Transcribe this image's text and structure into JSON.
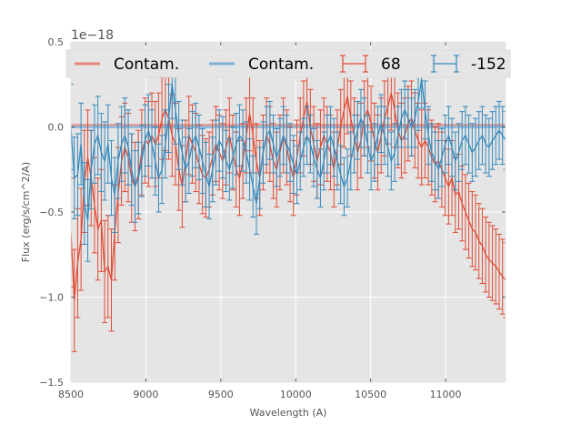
{
  "chart_data": {
    "type": "line",
    "title": "",
    "xlabel": "Wavelength (A)",
    "ylabel": "Flux (erg/s/cm^2/A)",
    "y_offset_label": "1e−18",
    "xlim": [
      8500,
      11400
    ],
    "ylim": [
      -1.5,
      0.5
    ],
    "x_ticks": [
      8500,
      9000,
      9500,
      10000,
      10500,
      11000
    ],
    "x_tick_labels": [
      "8500",
      "9000",
      "9500",
      "10000",
      "10500",
      "11000"
    ],
    "y_ticks": [
      0.5,
      0.0,
      -0.5,
      -1.0,
      -1.5
    ],
    "y_tick_labels": [
      "0.5",
      "0.0",
      "−0.5",
      "−1.0",
      "−1.5"
    ],
    "grid": true,
    "background": "#e5e5e5",
    "legend": {
      "placement": "top",
      "ncol": 4,
      "entries": [
        {
          "label": "Contam.",
          "kind": "line",
          "color": "#e8877a"
        },
        {
          "label": "Contam.",
          "kind": "line",
          "color": "#7fb0d6"
        },
        {
          "label": "68",
          "kind": "errorbar",
          "color": "#e24a33"
        },
        {
          "label": "-152",
          "kind": "errorbar",
          "color": "#348abd"
        }
      ]
    },
    "x_start": 8500,
    "x_step": 22.5,
    "series": [
      {
        "name": "68",
        "kind": "errorbar",
        "color": "#e24a33",
        "values": [
          -0.62,
          -1.02,
          -0.8,
          -0.66,
          -0.32,
          -0.18,
          -0.3,
          -0.46,
          -0.6,
          -0.55,
          -0.85,
          -0.82,
          -0.9,
          -0.62,
          -0.4,
          -0.2,
          -0.12,
          -0.18,
          -0.3,
          -0.35,
          -0.28,
          -0.15,
          -0.08,
          -0.1,
          -0.05,
          -0.1,
          -0.05,
          0.05,
          0.1,
          0.05,
          -0.05,
          -0.1,
          -0.25,
          -0.35,
          -0.2,
          -0.05,
          -0.1,
          -0.15,
          -0.22,
          -0.28,
          -0.3,
          -0.25,
          -0.18,
          -0.1,
          -0.15,
          -0.2,
          -0.12,
          -0.05,
          -0.15,
          -0.25,
          -0.3,
          -0.2,
          -0.05,
          0.08,
          -0.05,
          -0.2,
          -0.3,
          -0.15,
          -0.05,
          -0.1,
          -0.2,
          -0.25,
          -0.15,
          -0.05,
          -0.12,
          -0.22,
          -0.3,
          -0.18,
          -0.05,
          0.05,
          0.15,
          0.0,
          -0.1,
          -0.2,
          -0.12,
          -0.05,
          -0.1,
          -0.15,
          -0.25,
          -0.12,
          0.0,
          0.1,
          0.18,
          0.05,
          -0.05,
          -0.15,
          -0.08,
          0.05,
          0.1,
          0.02,
          -0.08,
          -0.15,
          -0.05,
          0.05,
          0.12,
          0.2,
          0.1,
          -0.02,
          -0.08,
          -0.05,
          0.02,
          0.05,
          -0.02,
          -0.08,
          -0.12,
          -0.08,
          -0.12,
          -0.18,
          -0.22,
          -0.2,
          -0.25,
          -0.3,
          -0.35,
          -0.3,
          -0.4,
          -0.38,
          -0.45,
          -0.5,
          -0.55,
          -0.6,
          -0.62,
          -0.67,
          -0.7,
          -0.75,
          -0.78,
          -0.8,
          -0.82,
          -0.85,
          -0.88,
          -0.9
        ],
        "errors": [
          0.32,
          0.3,
          0.32,
          0.3,
          0.3,
          0.28,
          0.28,
          0.28,
          0.3,
          0.3,
          0.3,
          0.3,
          0.3,
          0.28,
          0.28,
          0.26,
          0.26,
          0.26,
          0.26,
          0.26,
          0.26,
          0.25,
          0.25,
          0.25,
          0.25,
          0.25,
          0.25,
          0.24,
          0.24,
          0.24,
          0.24,
          0.24,
          0.24,
          0.24,
          0.24,
          0.23,
          0.23,
          0.23,
          0.23,
          0.23,
          0.23,
          0.22,
          0.22,
          0.22,
          0.22,
          0.22,
          0.22,
          0.22,
          0.22,
          0.22,
          0.22,
          0.22,
          0.22,
          0.22,
          0.22,
          0.22,
          0.22,
          0.22,
          0.22,
          0.22,
          0.22,
          0.22,
          0.22,
          0.22,
          0.22,
          0.22,
          0.22,
          0.22,
          0.22,
          0.22,
          0.22,
          0.22,
          0.22,
          0.22,
          0.22,
          0.22,
          0.22,
          0.22,
          0.22,
          0.22,
          0.22,
          0.22,
          0.22,
          0.22,
          0.22,
          0.22,
          0.22,
          0.22,
          0.22,
          0.22,
          0.22,
          0.22,
          0.22,
          0.22,
          0.22,
          0.22,
          0.22,
          0.22,
          0.22,
          0.22,
          0.22,
          0.22,
          0.22,
          0.22,
          0.22,
          0.22,
          0.22,
          0.22,
          0.22,
          0.22,
          0.22,
          0.22,
          0.22,
          0.22,
          0.22,
          0.22,
          0.22,
          0.22,
          0.22,
          0.22,
          0.22,
          0.22,
          0.22,
          0.22,
          0.22,
          0.22,
          0.22,
          0.22,
          0.22,
          0.22
        ]
      },
      {
        "name": "-152",
        "kind": "errorbar",
        "color": "#348abd",
        "values": [
          0.0,
          -0.3,
          -0.28,
          -0.1,
          -0.45,
          -0.55,
          -0.25,
          -0.1,
          -0.05,
          -0.15,
          -0.2,
          -0.1,
          -0.3,
          -0.4,
          -0.2,
          -0.1,
          -0.05,
          -0.12,
          -0.25,
          -0.35,
          -0.3,
          -0.2,
          -0.08,
          -0.02,
          -0.1,
          -0.2,
          -0.3,
          -0.25,
          -0.1,
          0.05,
          0.25,
          0.1,
          -0.05,
          -0.15,
          -0.25,
          -0.2,
          -0.1,
          -0.05,
          -0.12,
          -0.2,
          -0.28,
          -0.35,
          -0.25,
          -0.15,
          -0.08,
          -0.12,
          -0.2,
          -0.25,
          -0.18,
          -0.1,
          -0.05,
          -0.08,
          -0.15,
          -0.25,
          -0.35,
          -0.45,
          -0.3,
          -0.15,
          -0.05,
          -0.02,
          -0.1,
          -0.18,
          -0.12,
          -0.05,
          -0.1,
          -0.15,
          -0.22,
          -0.28,
          -0.2,
          -0.12,
          -0.05,
          -0.1,
          -0.18,
          -0.25,
          -0.3,
          -0.2,
          -0.1,
          -0.05,
          -0.12,
          -0.2,
          -0.28,
          -0.35,
          -0.3,
          -0.2,
          -0.1,
          -0.02,
          0.05,
          0.0,
          -0.1,
          -0.2,
          -0.15,
          -0.05,
          0.02,
          -0.05,
          -0.12,
          -0.2,
          -0.15,
          -0.05,
          0.05,
          0.1,
          0.05,
          0.0,
          0.05,
          0.15,
          0.28,
          0.1,
          -0.05,
          -0.15,
          -0.2,
          -0.25,
          -0.18,
          -0.1,
          -0.05,
          -0.12,
          -0.2,
          -0.15,
          -0.08,
          -0.05,
          -0.1,
          -0.15,
          -0.12,
          -0.08,
          -0.05,
          -0.1,
          -0.12,
          -0.08,
          -0.05,
          -0.02,
          -0.05,
          -0.08
        ],
        "errors": [
          0.25,
          0.24,
          0.24,
          0.24,
          0.24,
          0.24,
          0.23,
          0.23,
          0.23,
          0.23,
          0.23,
          0.23,
          0.22,
          0.22,
          0.22,
          0.22,
          0.22,
          0.22,
          0.21,
          0.21,
          0.21,
          0.21,
          0.21,
          0.21,
          0.2,
          0.2,
          0.2,
          0.2,
          0.2,
          0.2,
          0.2,
          0.2,
          0.2,
          0.19,
          0.19,
          0.19,
          0.19,
          0.19,
          0.19,
          0.19,
          0.19,
          0.19,
          0.19,
          0.19,
          0.18,
          0.18,
          0.18,
          0.18,
          0.18,
          0.18,
          0.18,
          0.18,
          0.18,
          0.18,
          0.18,
          0.18,
          0.18,
          0.18,
          0.17,
          0.17,
          0.17,
          0.17,
          0.17,
          0.17,
          0.17,
          0.17,
          0.17,
          0.17,
          0.17,
          0.17,
          0.17,
          0.17,
          0.17,
          0.17,
          0.17,
          0.17,
          0.17,
          0.17,
          0.17,
          0.17,
          0.17,
          0.17,
          0.17,
          0.17,
          0.17,
          0.17,
          0.17,
          0.17,
          0.17,
          0.17,
          0.17,
          0.17,
          0.17,
          0.17,
          0.17,
          0.17,
          0.17,
          0.17,
          0.17,
          0.17,
          0.17,
          0.17,
          0.17,
          0.17,
          0.17,
          0.17,
          0.17,
          0.17,
          0.17,
          0.17,
          0.17,
          0.17,
          0.17,
          0.17,
          0.17,
          0.17,
          0.17,
          0.17,
          0.17,
          0.17,
          0.17,
          0.17,
          0.17,
          0.17,
          0.17,
          0.17,
          0.17,
          0.17,
          0.17,
          0.17
        ]
      },
      {
        "name": "Contam.",
        "kind": "line",
        "color": "#e8877a",
        "note": "contamination model for 68 - flat near zero with small bumps",
        "values_const": 0.01
      },
      {
        "name": "Contam.",
        "kind": "line",
        "color": "#7fb0d6",
        "note": "contamination model for -152 - flat near zero",
        "values_const": 0.0
      }
    ]
  }
}
